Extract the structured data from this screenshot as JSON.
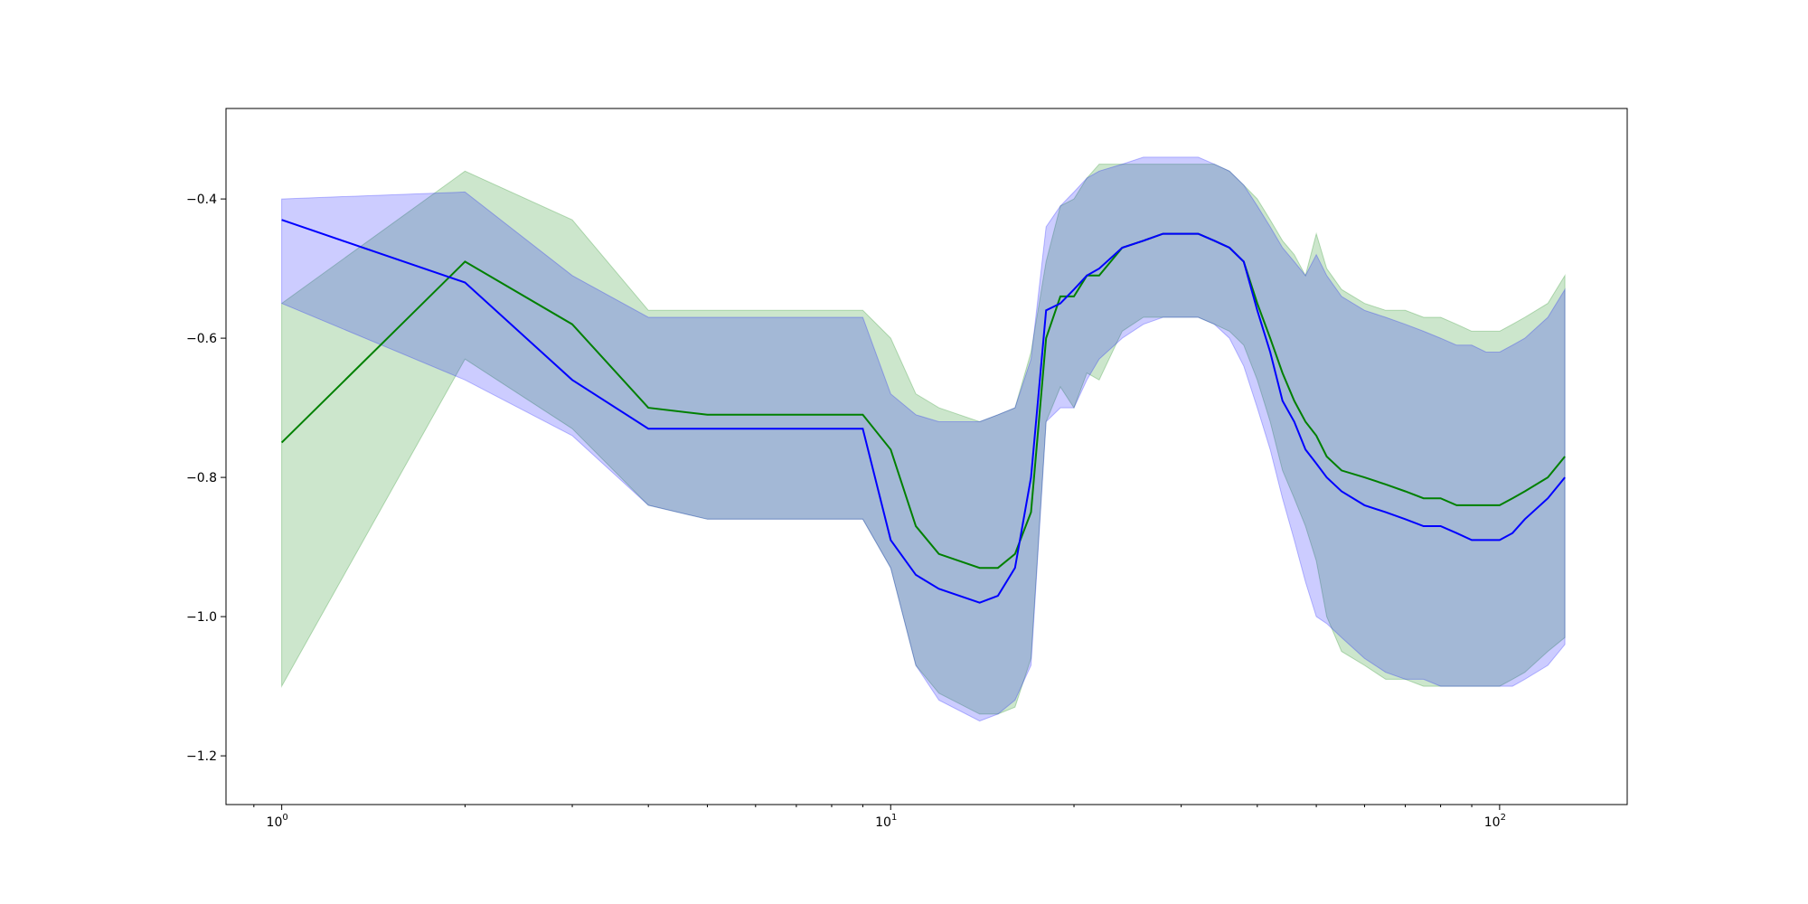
{
  "chart_data": {
    "type": "line",
    "title": "",
    "xlabel": "",
    "ylabel": "",
    "x_scale": "log",
    "xlim": [
      0.81,
      162
    ],
    "ylim": [
      -1.27,
      -0.27
    ],
    "grid": false,
    "x_tick_labels": [
      {
        "value": 1,
        "base": "10",
        "exp": "0"
      },
      {
        "value": 10,
        "base": "10",
        "exp": "1"
      },
      {
        "value": 100,
        "base": "10",
        "exp": "2"
      }
    ],
    "y_ticks": [
      -1.2,
      -1.0,
      -0.8,
      -0.6,
      -0.4
    ],
    "y_tick_labels": [
      "−1.2",
      "−1.0",
      "−0.8",
      "−0.6",
      "−0.4"
    ],
    "series": [
      {
        "color": "#008000",
        "band_color": "#008000",
        "band_opacity": 0.2,
        "x": [
          1,
          2,
          3,
          4,
          5,
          9,
          10,
          11,
          12,
          14,
          15,
          16,
          17,
          18,
          19,
          20,
          21,
          22,
          24,
          26,
          28,
          32,
          34,
          36,
          38,
          40,
          42,
          44,
          46,
          48,
          50,
          52,
          55,
          60,
          65,
          70,
          75,
          80,
          85,
          90,
          95,
          100,
          105,
          110,
          120,
          128
        ],
        "y": [
          -0.75,
          -0.49,
          -0.58,
          -0.7,
          -0.71,
          -0.71,
          -0.76,
          -0.87,
          -0.91,
          -0.93,
          -0.93,
          -0.91,
          -0.85,
          -0.6,
          -0.54,
          -0.54,
          -0.51,
          -0.51,
          -0.47,
          -0.46,
          -0.45,
          -0.45,
          -0.46,
          -0.47,
          -0.49,
          -0.55,
          -0.6,
          -0.65,
          -0.69,
          -0.72,
          -0.74,
          -0.77,
          -0.79,
          -0.8,
          -0.81,
          -0.82,
          -0.83,
          -0.83,
          -0.84,
          -0.84,
          -0.84,
          -0.84,
          -0.83,
          -0.82,
          -0.8,
          -0.77
        ],
        "upper": [
          -0.55,
          -0.36,
          -0.43,
          -0.56,
          -0.56,
          -0.56,
          -0.6,
          -0.68,
          -0.7,
          -0.72,
          -0.71,
          -0.7,
          -0.62,
          -0.49,
          -0.41,
          -0.4,
          -0.37,
          -0.35,
          -0.35,
          -0.35,
          -0.35,
          -0.35,
          -0.35,
          -0.36,
          -0.38,
          -0.4,
          -0.43,
          -0.46,
          -0.48,
          -0.51,
          -0.45,
          -0.5,
          -0.53,
          -0.55,
          -0.56,
          -0.56,
          -0.57,
          -0.57,
          -0.58,
          -0.59,
          -0.59,
          -0.59,
          -0.58,
          -0.57,
          -0.55,
          -0.51
        ],
        "lower": [
          -1.1,
          -0.63,
          -0.73,
          -0.84,
          -0.86,
          -0.86,
          -0.93,
          -1.07,
          -1.11,
          -1.14,
          -1.14,
          -1.13,
          -1.06,
          -0.72,
          -0.67,
          -0.7,
          -0.65,
          -0.66,
          -0.59,
          -0.57,
          -0.57,
          -0.57,
          -0.58,
          -0.59,
          -0.61,
          -0.66,
          -0.72,
          -0.79,
          -0.83,
          -0.87,
          -0.92,
          -1.0,
          -1.05,
          -1.07,
          -1.09,
          -1.09,
          -1.1,
          -1.1,
          -1.1,
          -1.1,
          -1.1,
          -1.1,
          -1.09,
          -1.08,
          -1.05,
          -1.03
        ]
      },
      {
        "color": "#0000ff",
        "band_color": "#0000ff",
        "band_opacity": 0.2,
        "x": [
          1,
          2,
          3,
          4,
          5,
          9,
          10,
          11,
          12,
          14,
          15,
          16,
          17,
          18,
          19,
          20,
          21,
          22,
          24,
          26,
          28,
          32,
          34,
          36,
          38,
          40,
          42,
          44,
          46,
          48,
          50,
          52,
          55,
          60,
          65,
          70,
          75,
          80,
          85,
          90,
          95,
          100,
          105,
          110,
          120,
          128
        ],
        "y": [
          -0.43,
          -0.52,
          -0.66,
          -0.73,
          -0.73,
          -0.73,
          -0.89,
          -0.94,
          -0.96,
          -0.98,
          -0.97,
          -0.93,
          -0.8,
          -0.56,
          -0.55,
          -0.53,
          -0.51,
          -0.5,
          -0.47,
          -0.46,
          -0.45,
          -0.45,
          -0.46,
          -0.47,
          -0.49,
          -0.56,
          -0.62,
          -0.69,
          -0.72,
          -0.76,
          -0.78,
          -0.8,
          -0.82,
          -0.84,
          -0.85,
          -0.86,
          -0.87,
          -0.87,
          -0.88,
          -0.89,
          -0.89,
          -0.89,
          -0.88,
          -0.86,
          -0.83,
          -0.8
        ],
        "upper": [
          -0.4,
          -0.39,
          -0.51,
          -0.57,
          -0.57,
          -0.57,
          -0.68,
          -0.71,
          -0.72,
          -0.72,
          -0.71,
          -0.7,
          -0.63,
          -0.44,
          -0.41,
          -0.39,
          -0.37,
          -0.36,
          -0.35,
          -0.34,
          -0.34,
          -0.34,
          -0.35,
          -0.36,
          -0.38,
          -0.41,
          -0.44,
          -0.47,
          -0.49,
          -0.51,
          -0.48,
          -0.51,
          -0.54,
          -0.56,
          -0.57,
          -0.58,
          -0.59,
          -0.6,
          -0.61,
          -0.61,
          -0.62,
          -0.62,
          -0.61,
          -0.6,
          -0.57,
          -0.53
        ],
        "lower": [
          -0.55,
          -0.66,
          -0.74,
          -0.84,
          -0.86,
          -0.86,
          -0.93,
          -1.07,
          -1.12,
          -1.15,
          -1.14,
          -1.12,
          -1.07,
          -0.72,
          -0.7,
          -0.7,
          -0.66,
          -0.63,
          -0.6,
          -0.58,
          -0.57,
          -0.57,
          -0.58,
          -0.6,
          -0.64,
          -0.7,
          -0.76,
          -0.83,
          -0.89,
          -0.95,
          -1.0,
          -1.01,
          -1.03,
          -1.06,
          -1.08,
          -1.09,
          -1.09,
          -1.1,
          -1.1,
          -1.1,
          -1.1,
          -1.1,
          -1.1,
          -1.09,
          -1.07,
          -1.04
        ]
      }
    ]
  }
}
